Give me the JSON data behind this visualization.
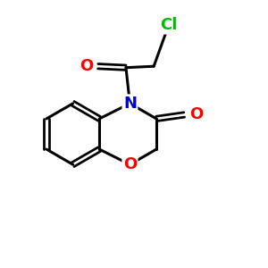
{
  "background_color": "#ffffff",
  "atom_colors": {
    "C": "#000000",
    "N": "#0000cc",
    "O": "#ff0000",
    "Cl": "#00bb00"
  },
  "bond_color": "#000000",
  "figsize": [
    3.0,
    3.0
  ],
  "dpi": 100
}
